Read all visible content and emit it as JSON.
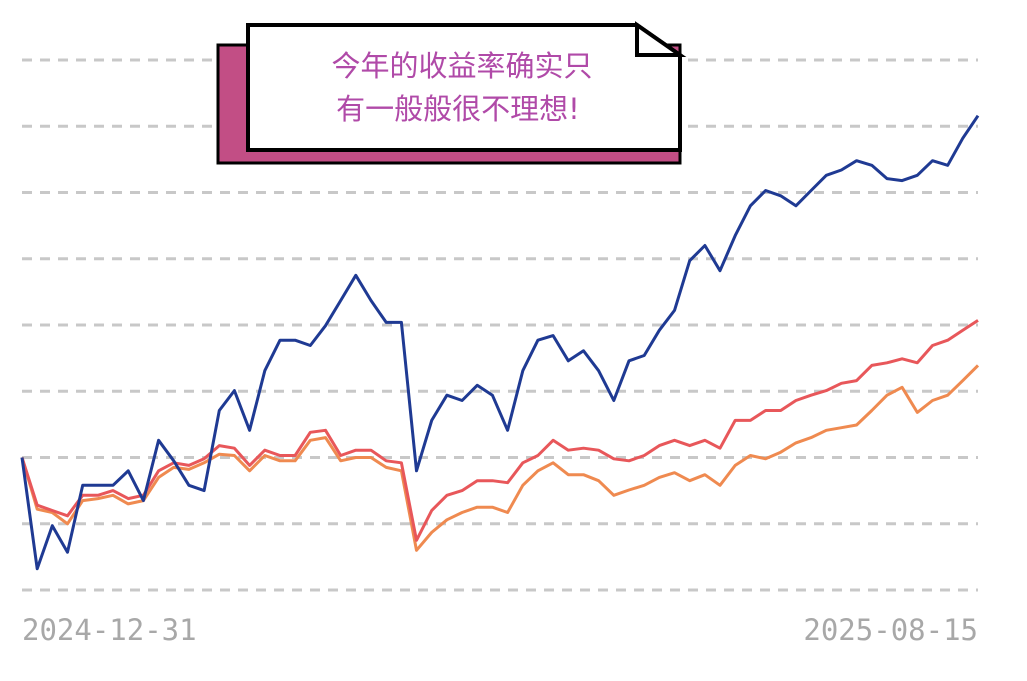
{
  "chart_data": {
    "type": "line",
    "annotation": [
      "今年的收益率确实只",
      "有一般般很不理想!"
    ],
    "categories": [
      "2024-12-31",
      null,
      null,
      null,
      null,
      null,
      null,
      null,
      null,
      null,
      null,
      null,
      null,
      null,
      null,
      null,
      null,
      null,
      null,
      null,
      null,
      null,
      null,
      null,
      null,
      null,
      null,
      null,
      null,
      null,
      null,
      null,
      null,
      null,
      null,
      null,
      null,
      null,
      null,
      null,
      null,
      null,
      null,
      null,
      null,
      null,
      null,
      null,
      null,
      null,
      null,
      null,
      null,
      null,
      null,
      null,
      null,
      null,
      null,
      null,
      null,
      null,
      null,
      "2025-08-15"
    ],
    "series": [
      {
        "color": "#1f3a93",
        "values": [
          0,
          -16.8,
          -10.3,
          -14.3,
          -4.2,
          -4.2,
          -4.2,
          -2,
          -6.5,
          2.6,
          -0.5,
          -4.2,
          -5,
          7.1,
          10.1,
          4.1,
          13.1,
          17.7,
          17.7,
          16.9,
          19.9,
          23.7,
          27.5,
          23.7,
          20.4,
          20.4,
          -2,
          5.6,
          9.4,
          8.6,
          10.9,
          9.4,
          4.1,
          13.1,
          17.7,
          18.4,
          14.6,
          16.1,
          13.1,
          8.6,
          14.6,
          15.4,
          19.2,
          22.2,
          29.7,
          32,
          28.2,
          33.5,
          38,
          40.3,
          39.5,
          38,
          40.3,
          42.6,
          43.4,
          44.8,
          44.1,
          42.1,
          41.8,
          42.6,
          44.8,
          44.1,
          48.2,
          51.6
        ]
      },
      {
        "color": "#e8575a",
        "values": [
          0,
          -7.2,
          -8,
          -8.8,
          -5.7,
          -5.7,
          -5,
          -6.2,
          -5.7,
          -2,
          -0.8,
          -1.2,
          -0.2,
          1.8,
          1.4,
          -1.2,
          1.1,
          0.3,
          0.3,
          3.8,
          4.1,
          0.3,
          1.1,
          1.1,
          -0.5,
          -0.8,
          -12.5,
          -8,
          -5.7,
          -5,
          -3.5,
          -3.5,
          -3.8,
          -0.8,
          0.3,
          2.6,
          1.1,
          1.4,
          1.1,
          -0.2,
          -0.5,
          0.3,
          1.8,
          2.6,
          1.8,
          2.6,
          1.4,
          5.6,
          5.6,
          7.1,
          7.1,
          8.6,
          9.4,
          10.1,
          11.2,
          11.6,
          13.9,
          14.3,
          14.9,
          14.3,
          16.9,
          17.7,
          19.2,
          20.7
        ]
      },
      {
        "color": "#ef8a50",
        "values": [
          0,
          -7.8,
          -8.3,
          -10,
          -6.5,
          -6.2,
          -5.7,
          -7,
          -6.5,
          -3,
          -1.5,
          -1.8,
          -0.8,
          0.5,
          0.3,
          -2,
          0.3,
          -0.5,
          -0.5,
          2.6,
          3,
          -0.5,
          0,
          0,
          -1.5,
          -2,
          -14,
          -11.3,
          -9.4,
          -8.3,
          -7.5,
          -7.5,
          -8.3,
          -4.2,
          -2,
          -0.8,
          -2.6,
          -2.6,
          -3.5,
          -5.7,
          -4.9,
          -4.2,
          -3,
          -2.3,
          -3.5,
          -2.6,
          -4.2,
          -1.2,
          0.3,
          -0.2,
          0.8,
          2.2,
          3,
          4.1,
          4.5,
          4.9,
          7.1,
          9.4,
          10.6,
          6.8,
          8.6,
          9.4,
          11.6,
          13.9
        ]
      }
    ],
    "ylim": [
      -20,
      60
    ],
    "yticks": [
      -20,
      -10,
      0,
      10,
      20,
      30,
      40,
      50,
      60
    ],
    "grid": true
  }
}
